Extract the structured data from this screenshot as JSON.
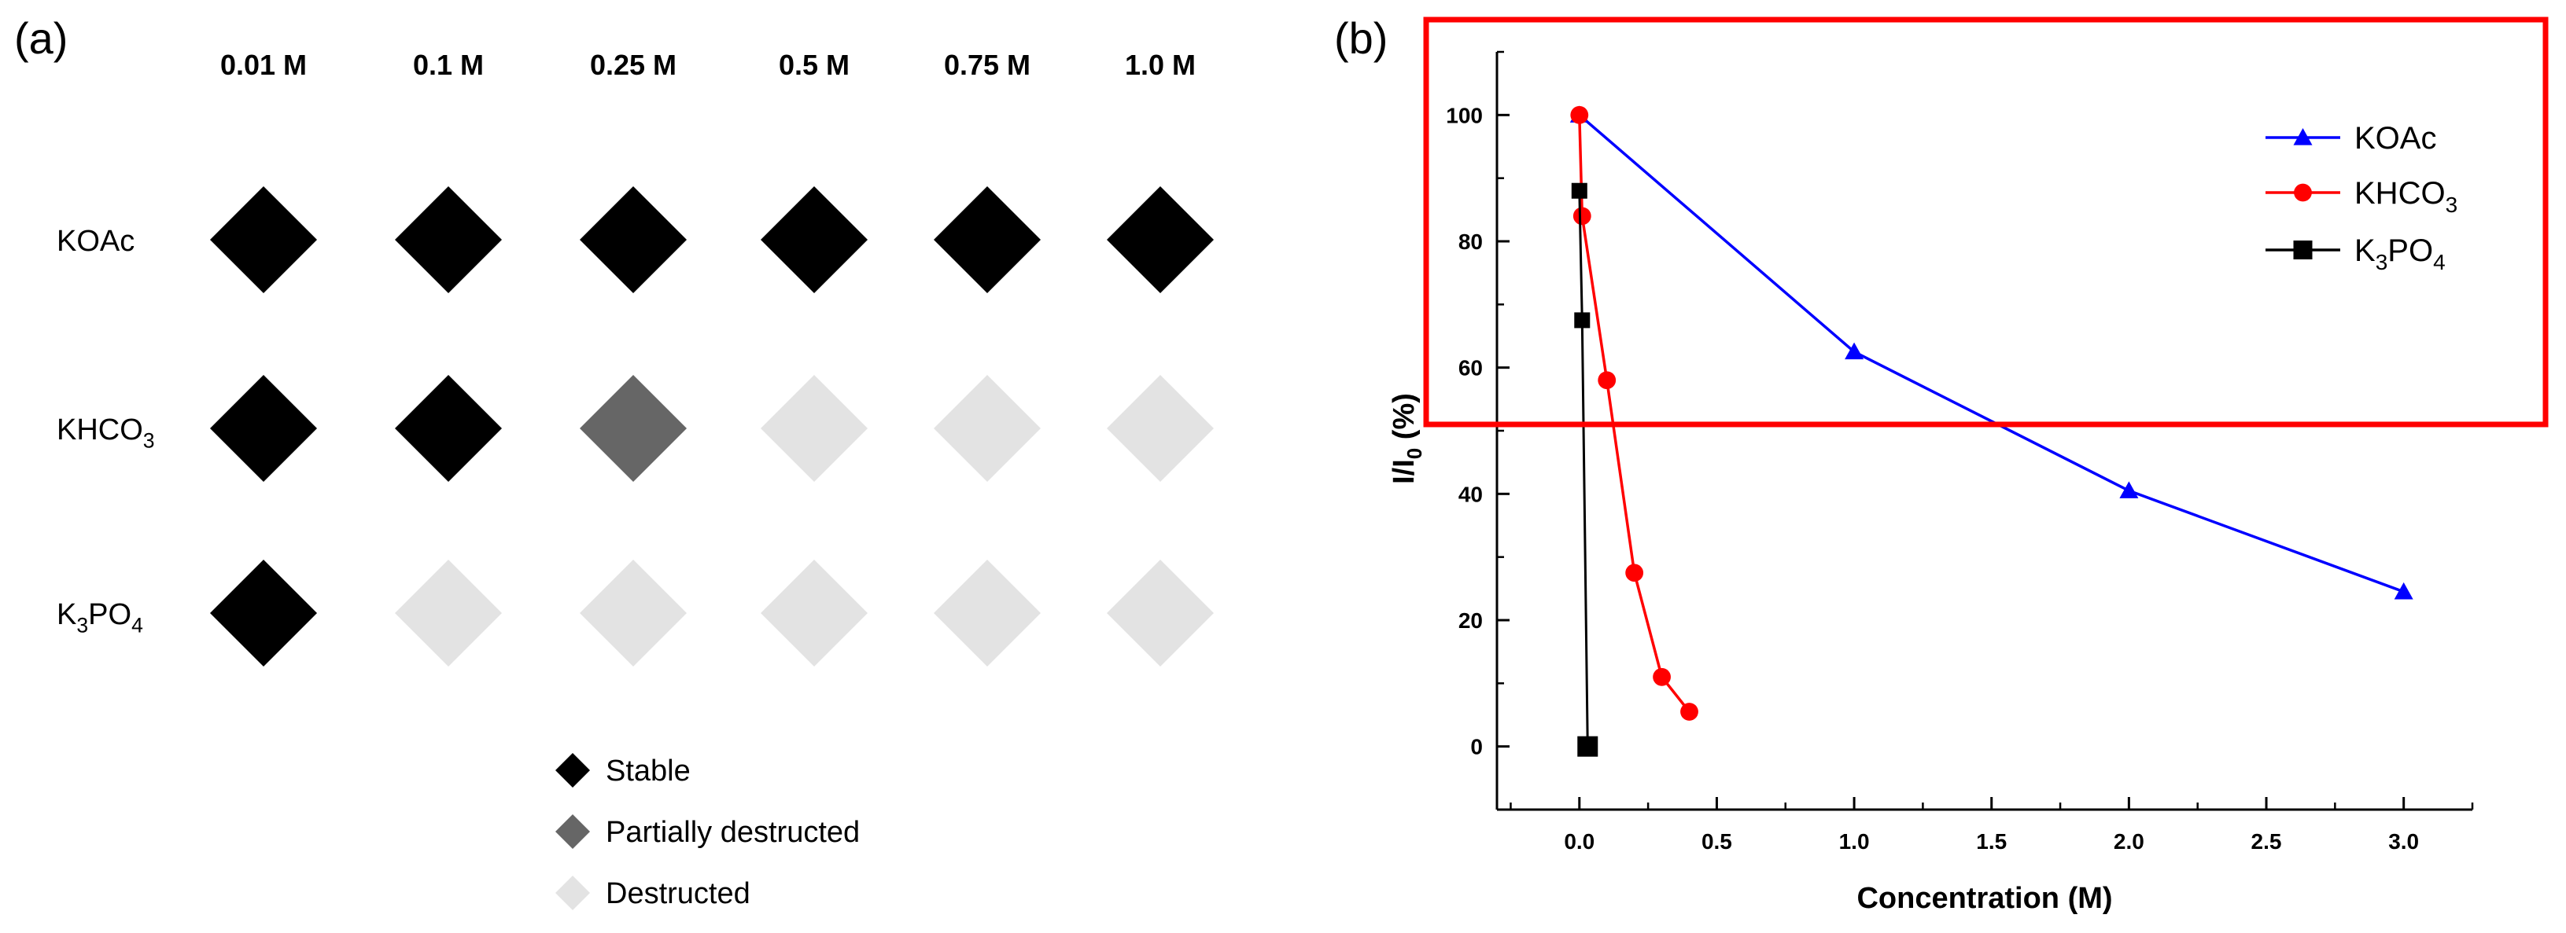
{
  "panel_a": {
    "label": "(a)",
    "concentrations": [
      "0.01 M",
      "0.1 M",
      "0.25 M",
      "0.5 M",
      "0.75 M",
      "1.0 M"
    ],
    "rows": [
      {
        "name": "KOAc",
        "sub1": "",
        "mid": "",
        "sub2": "",
        "states": [
          "stable",
          "stable",
          "stable",
          "stable",
          "stable",
          "stable"
        ]
      },
      {
        "name": "KHCO",
        "sub1": "",
        "mid": "",
        "sub2": "3",
        "states": [
          "stable",
          "stable",
          "partial",
          "destructed",
          "destructed",
          "destructed"
        ]
      },
      {
        "name": "K",
        "sub1": "3",
        "mid": "PO",
        "sub2": "4",
        "states": [
          "stable",
          "destructed",
          "destructed",
          "destructed",
          "destructed",
          "destructed"
        ]
      }
    ],
    "legend": [
      {
        "state": "stable",
        "label": "Stable"
      },
      {
        "state": "partial",
        "label": "Partially destructed"
      },
      {
        "state": "destructed",
        "label": "Destructed"
      }
    ],
    "colors": {
      "stable": "#000000",
      "partial": "#666666",
      "destructed": "#e3e3e3"
    }
  },
  "chart_data": {
    "type": "line",
    "panel_label": "(b)",
    "xlabel": "Concentration (M)",
    "ylabel": {
      "main": "I/I",
      "sub": "0",
      "tail": " (%)"
    },
    "xlim": [
      -0.3,
      3.25
    ],
    "ylim": [
      -10,
      110
    ],
    "xticks": [
      0.0,
      0.5,
      1.0,
      1.5,
      2.0,
      2.5,
      3.0
    ],
    "xtick_labels": [
      "0.0",
      "0.5",
      "1.0",
      "1.5",
      "2.0",
      "2.5",
      "3.0"
    ],
    "yticks": [
      0,
      20,
      40,
      60,
      80,
      100
    ],
    "ytick_labels": [
      "0",
      "20",
      "40",
      "60",
      "80",
      "100"
    ],
    "series": [
      {
        "name": "KOAc",
        "sub1": "",
        "mid": "",
        "sub2": "",
        "color": "#0000ff",
        "marker": "triangle",
        "x": [
          0,
          1,
          2,
          3
        ],
        "y": [
          100,
          62.5,
          40.5,
          24.5
        ]
      },
      {
        "name": "KHCO",
        "sub1": "",
        "mid": "",
        "sub2": "3",
        "color": "#ff0000",
        "marker": "circle",
        "x": [
          0,
          0.01,
          0.1,
          0.2,
          0.3,
          0.4
        ],
        "y": [
          100,
          84,
          58,
          27.5,
          11,
          5.5
        ]
      },
      {
        "name": "K",
        "sub1": "3",
        "mid": "PO",
        "sub2": "4",
        "color": "#000000",
        "marker": "square",
        "x": [
          0,
          0.01,
          0.03
        ],
        "y": [
          88,
          67.5,
          0
        ]
      }
    ],
    "legend_position": "top-right",
    "highlight_box": {
      "color": "#ff0000",
      "y_bottom": 51
    }
  }
}
